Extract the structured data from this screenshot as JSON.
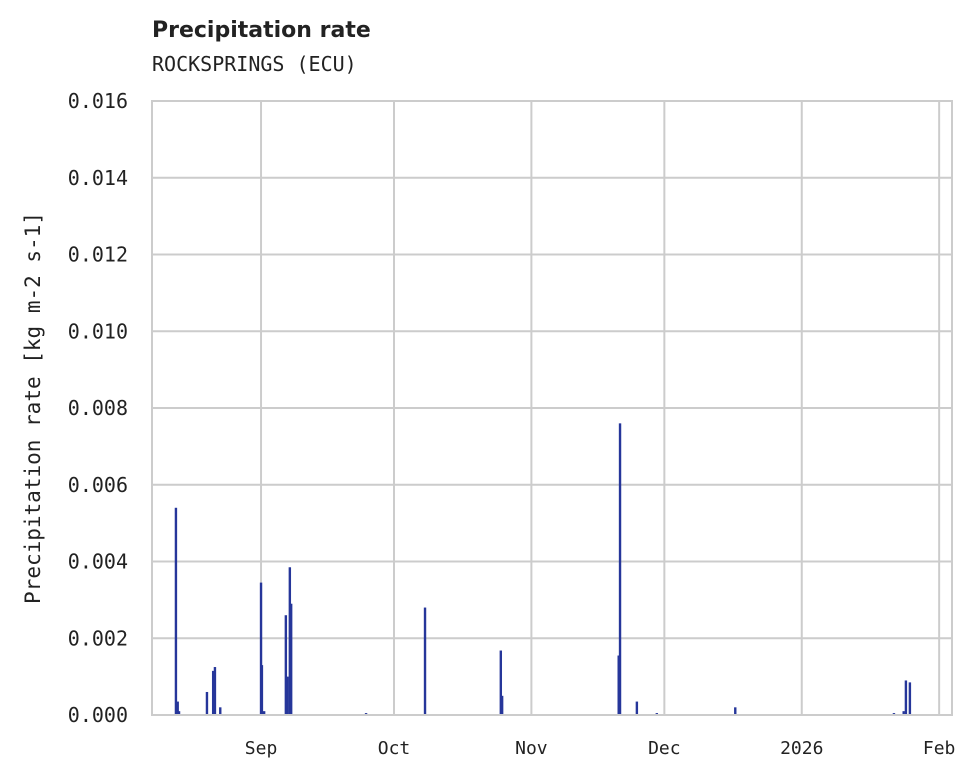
{
  "chart_data": {
    "type": "bar",
    "title": "Precipitation rate",
    "subtitle": "ROCKSPRINGS (ECU)",
    "xlabel": "",
    "ylabel": "Precipitation rate [kg m-2 s-1]",
    "x_units": "days since 2025-08-01",
    "xlim": [
      6.4,
      186.9
    ],
    "ylim": [
      0,
      0.016
    ],
    "grid": true,
    "color": "#26369a",
    "y_ticks": [
      {
        "value": 0.0,
        "label": "0.000"
      },
      {
        "value": 0.002,
        "label": "0.002"
      },
      {
        "value": 0.004,
        "label": "0.004"
      },
      {
        "value": 0.006,
        "label": "0.006"
      },
      {
        "value": 0.008,
        "label": "0.008"
      },
      {
        "value": 0.01,
        "label": "0.010"
      },
      {
        "value": 0.012,
        "label": "0.012"
      },
      {
        "value": 0.014,
        "label": "0.014"
      },
      {
        "value": 0.016,
        "label": "0.016"
      }
    ],
    "x_ticks": [
      {
        "value": 31,
        "label": "Sep"
      },
      {
        "value": 61,
        "label": "Oct"
      },
      {
        "value": 92,
        "label": "Nov"
      },
      {
        "value": 122,
        "label": "Dec"
      },
      {
        "value": 153,
        "label": "2026"
      },
      {
        "value": 184,
        "label": "Feb"
      }
    ],
    "x": [
      11.8,
      12.2,
      12.5,
      18.8,
      20.2,
      20.6,
      21.8,
      31.0,
      31.2,
      31.7,
      36.6,
      37.0,
      37.5,
      37.8,
      54.7,
      68.0,
      85.1,
      85.4,
      111.7,
      112.0,
      115.8,
      120.3,
      138.0,
      173.8,
      176.0,
      176.5,
      177.4
    ],
    "values": [
      0.0054,
      0.00035,
      0.0001,
      0.0006,
      0.00115,
      0.00125,
      0.0002,
      0.00345,
      0.0013,
      0.0001,
      0.0026,
      0.001,
      0.00385,
      0.0029,
      5e-05,
      0.0028,
      0.00168,
      0.0005,
      0.00155,
      0.0076,
      0.00035,
      5e-05,
      0.0002,
      5e-05,
      0.0001,
      0.0009,
      0.00085
    ]
  }
}
